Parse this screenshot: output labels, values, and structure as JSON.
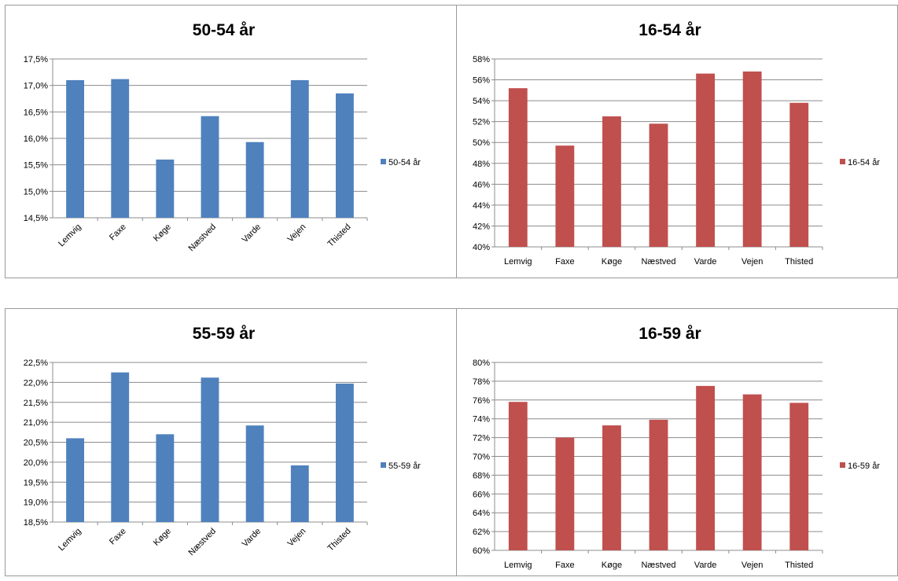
{
  "chart_data": [
    {
      "type": "bar",
      "title": "50-54 år",
      "categories": [
        "Lemvig",
        "Faxe",
        "Køge",
        "Næstved",
        "Varde",
        "Vejen",
        "Thisted"
      ],
      "series": [
        {
          "name": "50-54 år",
          "values": [
            0.171,
            0.1712,
            0.156,
            0.1642,
            0.1593,
            0.171,
            0.1685
          ]
        }
      ],
      "ylim": [
        0.145,
        0.175
      ],
      "yticks": [
        "14,5%",
        "15,0%",
        "15,5%",
        "16,0%",
        "16,5%",
        "17,0%",
        "17,5%"
      ],
      "xlabel": "",
      "ylabel": "",
      "grid": true,
      "legend": "right",
      "color": "#4f81bd",
      "xlabel_rotation": "diagonal"
    },
    {
      "type": "bar",
      "title": "16-54 år",
      "categories": [
        "Lemvig",
        "Faxe",
        "Køge",
        "Næstved",
        "Varde",
        "Vejen",
        "Thisted"
      ],
      "series": [
        {
          "name": "16-54 år",
          "values": [
            0.552,
            0.497,
            0.525,
            0.518,
            0.566,
            0.568,
            0.538
          ]
        }
      ],
      "ylim": [
        0.4,
        0.58
      ],
      "yticks": [
        "40%",
        "42%",
        "44%",
        "46%",
        "48%",
        "50%",
        "52%",
        "54%",
        "56%",
        "58%"
      ],
      "xlabel": "",
      "ylabel": "",
      "grid": true,
      "legend": "right",
      "color": "#c0504d",
      "xlabel_rotation": "horizontal"
    },
    {
      "type": "bar",
      "title": "55-59 år",
      "categories": [
        "Lemvig",
        "Faxe",
        "Køge",
        "Næstved",
        "Varde",
        "Vejen",
        "Thisted"
      ],
      "series": [
        {
          "name": "55-59 år",
          "values": [
            0.206,
            0.2225,
            0.207,
            0.2212,
            0.2092,
            0.1992,
            0.2197
          ]
        }
      ],
      "ylim": [
        0.185,
        0.225
      ],
      "yticks": [
        "18,5%",
        "19,0%",
        "19,5%",
        "20,0%",
        "20,5%",
        "21,0%",
        "21,5%",
        "22,0%",
        "22,5%"
      ],
      "xlabel": "",
      "ylabel": "",
      "grid": true,
      "legend": "right",
      "color": "#4f81bd",
      "xlabel_rotation": "diagonal"
    },
    {
      "type": "bar",
      "title": "16-59 år",
      "categories": [
        "Lemvig",
        "Faxe",
        "Køge",
        "Næstved",
        "Varde",
        "Vejen",
        "Thisted"
      ],
      "series": [
        {
          "name": "16-59 år",
          "values": [
            0.758,
            0.72,
            0.733,
            0.739,
            0.775,
            0.766,
            0.757
          ]
        }
      ],
      "ylim": [
        0.6,
        0.8
      ],
      "yticks": [
        "60%",
        "62%",
        "64%",
        "66%",
        "68%",
        "70%",
        "72%",
        "74%",
        "76%",
        "78%",
        "80%"
      ],
      "xlabel": "",
      "ylabel": "",
      "grid": true,
      "legend": "right",
      "color": "#c0504d",
      "xlabel_rotation": "horizontal"
    }
  ]
}
